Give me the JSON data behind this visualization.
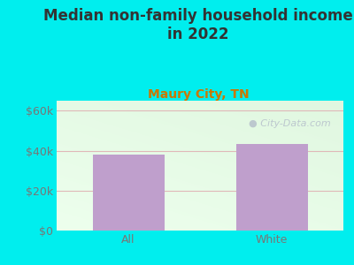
{
  "title": "Median non-family household income\nin 2022",
  "subtitle": "Maury City, TN",
  "categories": [
    "All",
    "White"
  ],
  "values": [
    38000,
    43500
  ],
  "bar_color": "#bf9fcc",
  "background_color": "#00EEEE",
  "title_color": "#333333",
  "subtitle_color": "#cc7700",
  "tick_color": "#777777",
  "yticks": [
    0,
    20000,
    40000,
    60000
  ],
  "ytick_labels": [
    "$0",
    "$20k",
    "$40k",
    "$60k"
  ],
  "ylim": [
    0,
    65000
  ],
  "xlim": [
    -0.5,
    1.5
  ],
  "watermark": "City-Data.com",
  "grid_color": "#e0b8b8",
  "title_fontsize": 12,
  "subtitle_fontsize": 10,
  "tick_fontsize": 9,
  "bar_width": 0.5
}
